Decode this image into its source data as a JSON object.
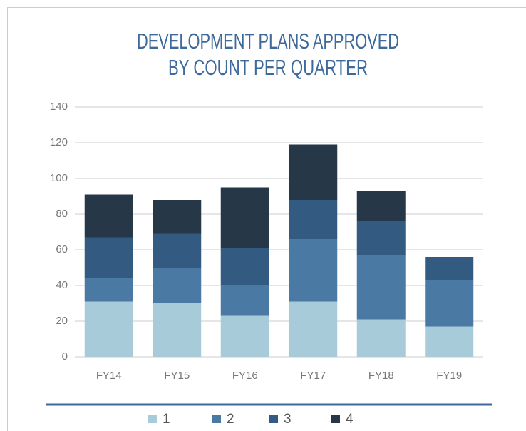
{
  "chart_data": {
    "type": "stacked_bar",
    "title_lines": [
      "DEVELOPMENT PLANS APPROVED",
      "BY COUNT PER QUARTER"
    ],
    "categories": [
      "FY14",
      "FY15",
      "FY16",
      "FY17",
      "FY18",
      "FY19"
    ],
    "series": [
      {
        "name": "1",
        "color": "#a8cbd9",
        "values": [
          31,
          30,
          23,
          31,
          21,
          17
        ]
      },
      {
        "name": "2",
        "color": "#4a79a3",
        "values": [
          13,
          20,
          17,
          35,
          36,
          26
        ]
      },
      {
        "name": "3",
        "color": "#335a80",
        "values": [
          23,
          19,
          21,
          22,
          19,
          13
        ]
      },
      {
        "name": "4",
        "color": "#263747",
        "values": [
          24,
          19,
          34,
          31,
          17,
          0
        ]
      }
    ],
    "ylim": [
      0,
      140
    ],
    "yticks": [
      0,
      20,
      40,
      60,
      80,
      100,
      120,
      140
    ],
    "grid": true,
    "legend": "bottom"
  }
}
